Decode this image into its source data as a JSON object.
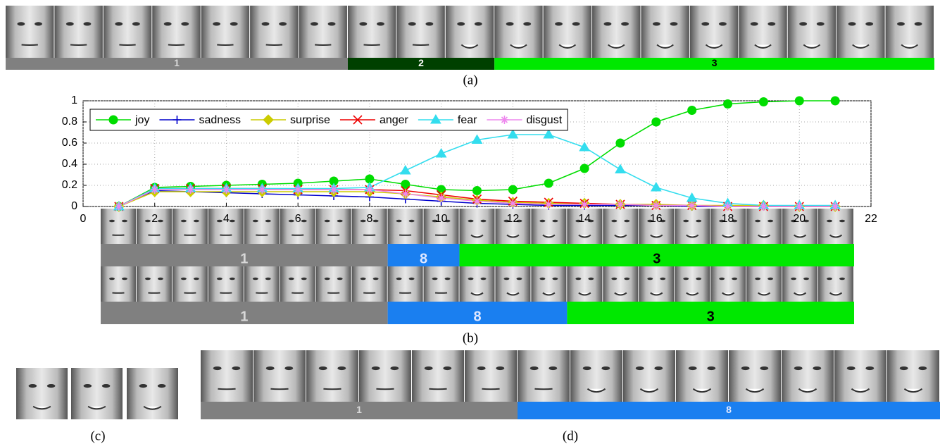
{
  "panel_a": {
    "caption": "(a)",
    "segments": [
      {
        "label": "1",
        "frames": 7,
        "color": "#808080",
        "label_color": "#d8d8d8"
      },
      {
        "label": "2",
        "frames": 3,
        "color": "#004000",
        "label_color": "#ffffff"
      },
      {
        "label": "3",
        "frames": 9,
        "color": "#00e800",
        "label_color": "#000000"
      }
    ]
  },
  "chart_data": {
    "type": "line",
    "x": [
      1,
      2,
      3,
      4,
      5,
      6,
      7,
      8,
      9,
      10,
      11,
      12,
      13,
      14,
      15,
      16,
      17,
      18,
      19,
      20,
      21
    ],
    "xlim": [
      0,
      22
    ],
    "xticks": [
      0,
      2,
      4,
      6,
      8,
      10,
      12,
      14,
      16,
      18,
      20,
      22
    ],
    "ylim": [
      0,
      1
    ],
    "yticks": [
      0,
      0.2,
      0.4,
      0.6,
      0.8,
      1
    ],
    "grid": true,
    "legend": "top-left",
    "series": [
      {
        "name": "joy",
        "color": "#00dd00",
        "marker": "circle",
        "values": [
          0,
          0.18,
          0.19,
          0.2,
          0.21,
          0.22,
          0.24,
          0.26,
          0.21,
          0.16,
          0.15,
          0.16,
          0.22,
          0.36,
          0.6,
          0.8,
          0.91,
          0.97,
          0.99,
          1.0,
          1.0
        ]
      },
      {
        "name": "sadness",
        "color": "#0000cc",
        "marker": "plus",
        "values": [
          0,
          0.15,
          0.14,
          0.13,
          0.12,
          0.11,
          0.1,
          0.09,
          0.07,
          0.05,
          0.03,
          0.02,
          0.01,
          0.01,
          0.01,
          0.01,
          0,
          0,
          0,
          0,
          0
        ]
      },
      {
        "name": "surprise",
        "color": "#cccc00",
        "marker": "diamond",
        "values": [
          0,
          0.14,
          0.14,
          0.14,
          0.14,
          0.14,
          0.14,
          0.14,
          0.12,
          0.09,
          0.06,
          0.04,
          0.03,
          0.03,
          0.02,
          0.02,
          0.01,
          0.01,
          0.01,
          0,
          0
        ]
      },
      {
        "name": "anger",
        "color": "#ee0000",
        "marker": "x",
        "values": [
          0,
          0.17,
          0.17,
          0.17,
          0.17,
          0.16,
          0.16,
          0.16,
          0.15,
          0.11,
          0.07,
          0.05,
          0.04,
          0.03,
          0.02,
          0.01,
          0.01,
          0,
          0,
          0,
          0
        ]
      },
      {
        "name": "fear",
        "color": "#33ddee",
        "marker": "triangle",
        "values": [
          0,
          0.17,
          0.17,
          0.17,
          0.17,
          0.17,
          0.17,
          0.18,
          0.34,
          0.5,
          0.63,
          0.68,
          0.68,
          0.56,
          0.35,
          0.18,
          0.08,
          0.03,
          0.01,
          0.01,
          0.01
        ]
      },
      {
        "name": "disgust",
        "color": "#ee88ee",
        "marker": "asterisk",
        "values": [
          0,
          0.16,
          0.16,
          0.16,
          0.16,
          0.16,
          0.16,
          0.16,
          0.12,
          0.08,
          0.05,
          0.03,
          0.02,
          0.02,
          0.02,
          0.01,
          0.01,
          0,
          0,
          0,
          0
        ]
      }
    ]
  },
  "panel_b": {
    "caption": "(b)",
    "strips": [
      {
        "segments": [
          {
            "label": "1",
            "frames": 8,
            "color": "#808080",
            "label_color": "#d8d8d8"
          },
          {
            "label": "8",
            "frames": 2,
            "color": "#1a7ff0",
            "label_color": "#e0e8ff"
          },
          {
            "label": "3",
            "frames": 11,
            "color": "#00e800",
            "label_color": "#000000"
          }
        ]
      },
      {
        "segments": [
          {
            "label": "1",
            "frames": 8,
            "color": "#808080",
            "label_color": "#d8d8d8"
          },
          {
            "label": "8",
            "frames": 5,
            "color": "#1a7ff0",
            "label_color": "#e0e8ff"
          },
          {
            "label": "3",
            "frames": 8,
            "color": "#00e800",
            "label_color": "#000000"
          }
        ]
      }
    ]
  },
  "panel_c": {
    "caption": "(c)"
  },
  "panel_d": {
    "caption": "(d)",
    "segments": [
      {
        "label": "1",
        "frames": 6,
        "color": "#808080",
        "label_color": "#d8d8d8"
      },
      {
        "label": "8",
        "frames": 8,
        "color": "#1a7ff0",
        "label_color": "#e0e8ff"
      }
    ]
  }
}
